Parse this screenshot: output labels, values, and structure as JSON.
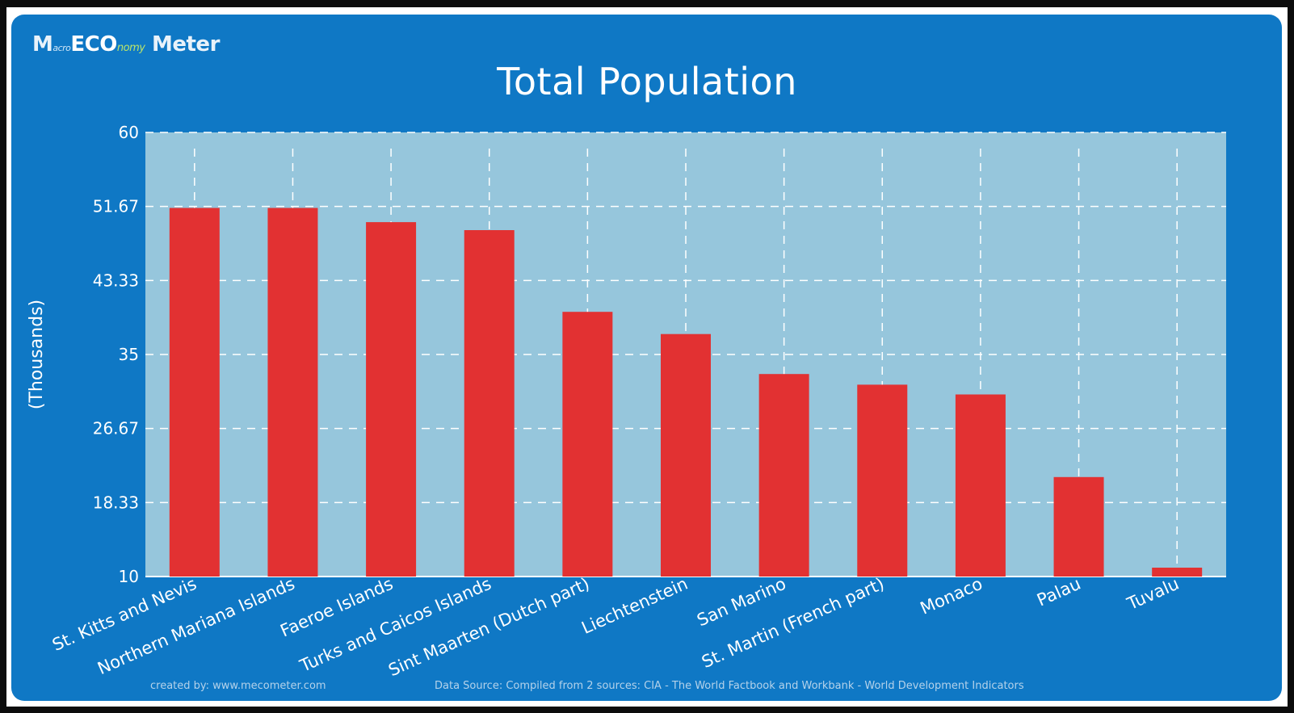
{
  "logo": {
    "text_m": "M",
    "text_small": "acro",
    "text_eco": "ECO",
    "text_way": "nomy",
    "text_meter": "Meter"
  },
  "footer": {
    "created_by": "created by: www.mecometer.com",
    "source": "Data Source: Compiled from 2 sources: CIA - The World Factbook and Workbank - World Development Indicators"
  },
  "colors": {
    "bar": "#e23132",
    "plot_bg": "#96c6dc",
    "panel": "#0f78c5"
  },
  "chart_data": {
    "type": "bar",
    "title": "Total Population",
    "ylabel": "(Thousands)",
    "xlabel": "",
    "ylim": [
      10,
      60
    ],
    "yticks": [
      "10",
      "18.33",
      "26.67",
      "35",
      "43.33",
      "51.67",
      "60"
    ],
    "grid": true,
    "categories": [
      "St. Kitts and Nevis",
      "Northern Mariana Islands",
      "Faeroe Islands",
      "Turks and Caicos Islands",
      "Sint Maarten (Dutch part)",
      "Liechtenstein",
      "San Marino",
      "St. Martin (French part)",
      "Monaco",
      "Palau",
      "Tuvalu"
    ],
    "values": [
      51.5,
      51.5,
      49.9,
      49.0,
      39.8,
      37.3,
      32.8,
      31.6,
      30.5,
      21.2,
      11.0
    ]
  }
}
